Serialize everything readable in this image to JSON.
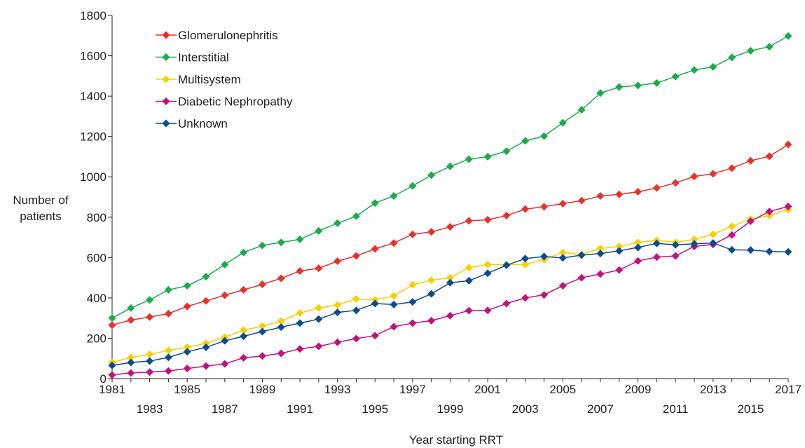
{
  "chart_data": {
    "type": "line",
    "title": "",
    "xlabel": "Year starting RRT",
    "ylabel": [
      "Number of",
      "patients"
    ],
    "ylim": [
      0,
      1800
    ],
    "yticks": [
      0,
      200,
      400,
      600,
      800,
      1000,
      1200,
      1400,
      1600,
      1800
    ],
    "xlim": [
      1981,
      2017
    ],
    "xticks": [
      "1981",
      "1983",
      "1985",
      "1987",
      "1989",
      "1991",
      "1993",
      "1995",
      "1997",
      "1999",
      "2001",
      "2003",
      "2005",
      "2007",
      "2009",
      "2011",
      "2013",
      "2015",
      "2017"
    ],
    "grid": false,
    "legend_position": "top-left",
    "x": [
      1981,
      1982,
      1983,
      1984,
      1985,
      1986,
      1987,
      1988,
      1989,
      1990,
      1991,
      1992,
      1993,
      1994,
      1995,
      1996,
      1997,
      1998,
      1999,
      2000,
      2001,
      2002,
      2003,
      2004,
      2005,
      2006,
      2007,
      2008,
      2009,
      2010,
      2011,
      2012,
      2013,
      2014,
      2015,
      2016,
      2017
    ],
    "series": [
      {
        "name": "Glomerulonephritis",
        "color": "#e8312a",
        "values": [
          265,
          290,
          305,
          322,
          358,
          385,
          413,
          440,
          467,
          497,
          533,
          547,
          582,
          608,
          643,
          672,
          715,
          727,
          752,
          782,
          787,
          808,
          840,
          852,
          867,
          882,
          905,
          913,
          926,
          945,
          970,
          1002,
          1015,
          1043,
          1080,
          1102,
          1160
        ]
      },
      {
        "name": "Interstitial",
        "color": "#1aab4b",
        "values": [
          300,
          350,
          390,
          440,
          460,
          505,
          565,
          625,
          660,
          675,
          690,
          732,
          770,
          805,
          870,
          905,
          955,
          1008,
          1052,
          1087,
          1100,
          1127,
          1178,
          1202,
          1268,
          1332,
          1415,
          1445,
          1453,
          1465,
          1497,
          1530,
          1545,
          1592,
          1625,
          1645,
          1698
        ]
      },
      {
        "name": "Multisystem",
        "color": "#f6d000",
        "values": [
          80,
          105,
          120,
          140,
          155,
          175,
          205,
          240,
          260,
          285,
          325,
          350,
          365,
          395,
          390,
          410,
          465,
          488,
          500,
          550,
          565,
          565,
          565,
          590,
          625,
          615,
          645,
          655,
          675,
          685,
          675,
          690,
          715,
          755,
          790,
          808,
          838
        ]
      },
      {
        "name": "Diabetic Nephropathy",
        "color": "#c4117b",
        "values": [
          18,
          28,
          32,
          38,
          50,
          62,
          73,
          103,
          112,
          125,
          147,
          160,
          180,
          198,
          213,
          257,
          275,
          287,
          312,
          337,
          338,
          372,
          400,
          415,
          460,
          500,
          518,
          538,
          583,
          602,
          608,
          655,
          665,
          712,
          780,
          828,
          853
        ]
      },
      {
        "name": "Unknown",
        "color": "#0d4c8c",
        "values": [
          65,
          80,
          87,
          105,
          133,
          155,
          187,
          210,
          233,
          255,
          275,
          295,
          328,
          338,
          372,
          367,
          380,
          420,
          475,
          485,
          522,
          562,
          595,
          605,
          598,
          612,
          620,
          633,
          650,
          670,
          663,
          668,
          672,
          638,
          637,
          630,
          628
        ]
      }
    ]
  }
}
